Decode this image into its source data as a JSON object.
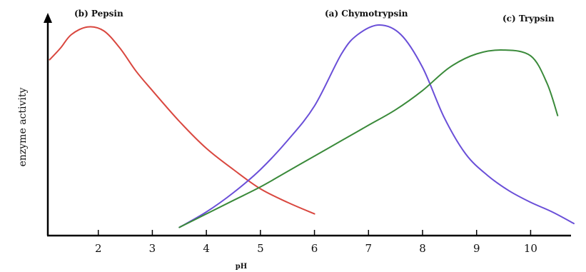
{
  "chart_data": {
    "type": "line",
    "title": "",
    "xlabel": "pH",
    "ylabel": "enzyme activity",
    "xlim": [
      1.0,
      10.8
    ],
    "ylim": [
      0,
      100
    ],
    "x_ticks": [
      2,
      3,
      4,
      5,
      6,
      7,
      8,
      9,
      10
    ],
    "x_tick_labels": [
      "2",
      "3",
      "4",
      "5",
      "6",
      "7",
      "8",
      "9",
      "10"
    ],
    "grid": false,
    "y_axis_arrow": true,
    "series": [
      {
        "name": "(b) Pepsin",
        "color": "#d9473f",
        "label_text": "(b) Pepsin",
        "points": [
          [
            1.1,
            82
          ],
          [
            1.3,
            88
          ],
          [
            1.5,
            95
          ],
          [
            1.8,
            99
          ],
          [
            2.1,
            97
          ],
          [
            2.4,
            88
          ],
          [
            2.7,
            76
          ],
          [
            3.0,
            66
          ],
          [
            3.5,
            50
          ],
          [
            4.0,
            36
          ],
          [
            4.5,
            25
          ],
          [
            5.0,
            15
          ],
          [
            5.5,
            8
          ],
          [
            6.0,
            2
          ]
        ]
      },
      {
        "name": "(a) Chymotrypsin",
        "color": "#6a4fd8",
        "label_text": "(a) Chymotrypsin",
        "points": [
          [
            3.5,
            -5
          ],
          [
            4.0,
            3
          ],
          [
            4.5,
            13
          ],
          [
            5.0,
            25
          ],
          [
            5.5,
            40
          ],
          [
            6.0,
            58
          ],
          [
            6.5,
            85
          ],
          [
            6.8,
            95
          ],
          [
            7.2,
            100
          ],
          [
            7.6,
            95
          ],
          [
            8.0,
            78
          ],
          [
            8.4,
            52
          ],
          [
            8.8,
            33
          ],
          [
            9.2,
            22
          ],
          [
            9.6,
            14
          ],
          [
            10.0,
            8
          ],
          [
            10.4,
            3
          ],
          [
            10.8,
            -3
          ]
        ]
      },
      {
        "name": "(c) Trypsin",
        "color": "#3a8a3a",
        "label_text": "(c) Trypsin",
        "points": [
          [
            3.5,
            -5
          ],
          [
            4.0,
            2
          ],
          [
            4.5,
            9
          ],
          [
            5.0,
            16
          ],
          [
            5.5,
            24
          ],
          [
            6.0,
            32
          ],
          [
            6.5,
            40
          ],
          [
            7.0,
            48
          ],
          [
            7.5,
            56
          ],
          [
            8.0,
            66
          ],
          [
            8.5,
            78
          ],
          [
            9.0,
            85
          ],
          [
            9.5,
            87
          ],
          [
            10.0,
            84
          ],
          [
            10.3,
            70
          ],
          [
            10.5,
            53
          ]
        ]
      }
    ]
  }
}
